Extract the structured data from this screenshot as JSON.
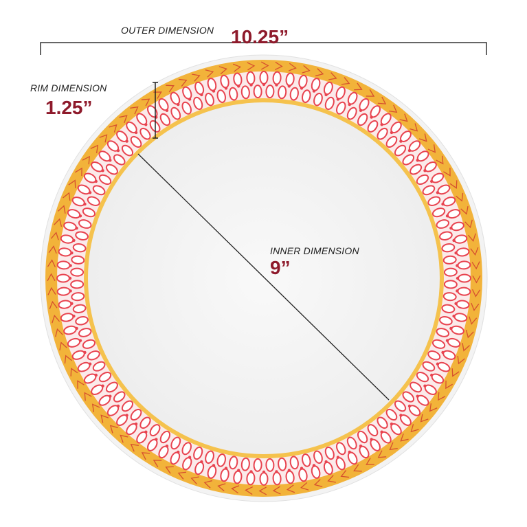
{
  "outer": {
    "label": "OUTER DIMENSION",
    "value": "10.25”"
  },
  "rim": {
    "label": "RIM DIMENSION",
    "value": "1.25”"
  },
  "inner": {
    "label": "INNER DIMENSION",
    "value": "9”"
  },
  "colors": {
    "accent": "#8e1a2b",
    "gold": "#f2b33a",
    "red_pattern": "#e8434f",
    "plate": "#f7f7f7"
  }
}
